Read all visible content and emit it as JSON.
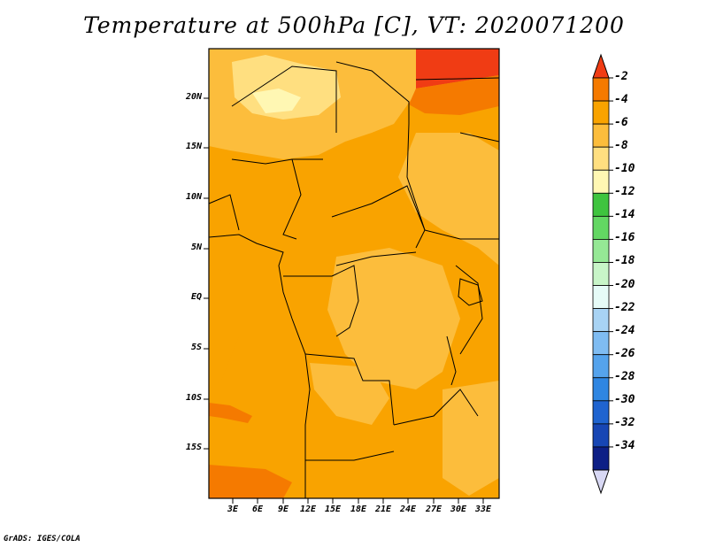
{
  "title": "Temperature at 500hPa [C], VT: 2020071200",
  "footer": "GrADS: IGES/COLA",
  "map": {
    "lat_labels": [
      "20N",
      "15N",
      "10N",
      "5N",
      "EQ",
      "5S",
      "10S",
      "15S"
    ],
    "lon_labels": [
      "3E",
      "6E",
      "9E",
      "12E",
      "15E",
      "18E",
      "21E",
      "24E",
      "27E",
      "30E",
      "33E"
    ]
  },
  "colorbar": {
    "labels": [
      "-2",
      "-4",
      "-6",
      "-8",
      "-10",
      "-12",
      "-14",
      "-16",
      "-18",
      "-20",
      "-22",
      "-24",
      "-26",
      "-28",
      "-30",
      "-32",
      "-34"
    ],
    "colors": [
      "#f03c14",
      "#f57a00",
      "#f9a300",
      "#fcbd3c",
      "#ffdf80",
      "#fff7b3",
      "#3fc43f",
      "#63d763",
      "#95e895",
      "#c8f5c8",
      "#e6fbf7",
      "#a8d3f4",
      "#7fbcf2",
      "#55a3ec",
      "#2f86e2",
      "#1f64d0",
      "#1746b4",
      "#0d1f86",
      "#d8d8f4"
    ]
  }
}
